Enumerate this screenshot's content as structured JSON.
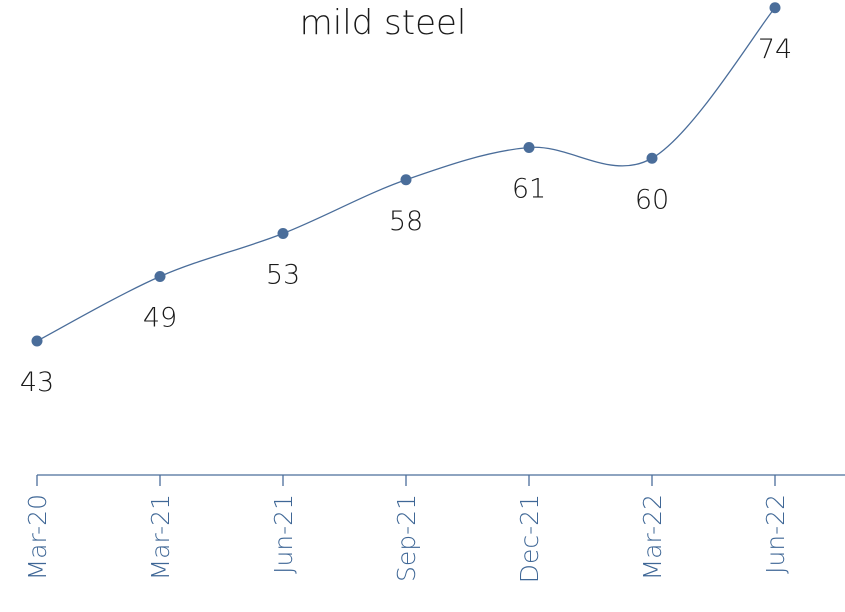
{
  "chart_data": {
    "type": "line",
    "title": "mild steel",
    "categories": [
      "Mar-20",
      "Mar-21",
      "Jun-21",
      "Sep-21",
      "Dec-21",
      "Mar-22",
      "Jun-22"
    ],
    "series": [
      {
        "values": [
          43,
          49,
          53,
          58,
          61,
          60,
          74
        ]
      }
    ],
    "xlabel": "",
    "ylabel": "",
    "data_labels": true,
    "grid": false,
    "legend": "none",
    "colors": {
      "series": "#4a6d9a",
      "axis": "#4a6d9a",
      "tick_text": "#3f6796",
      "text": "#1a1a1a"
    }
  }
}
